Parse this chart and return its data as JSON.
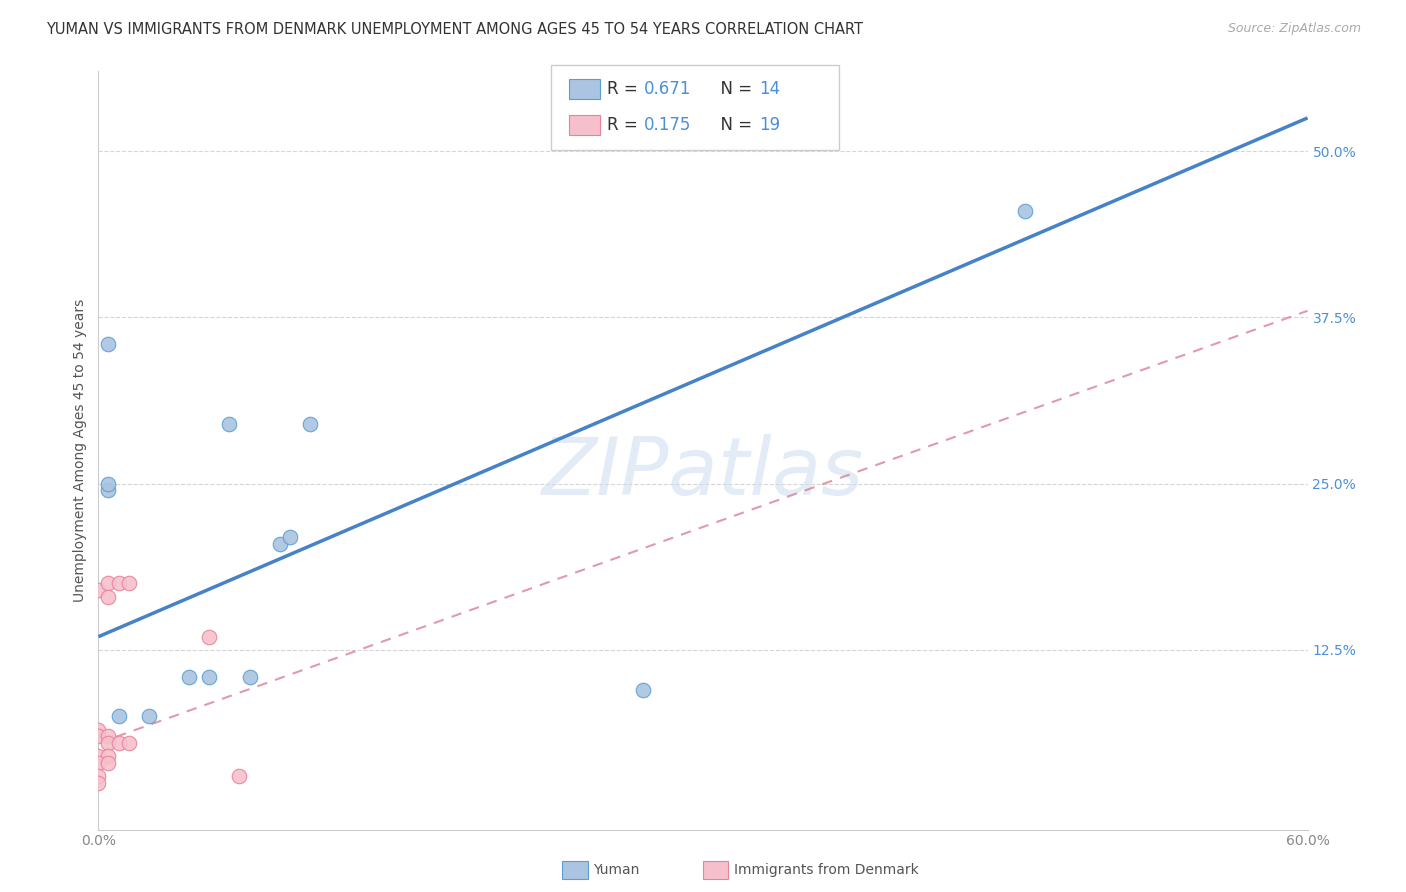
{
  "title": "YUMAN VS IMMIGRANTS FROM DENMARK UNEMPLOYMENT AMONG AGES 45 TO 54 YEARS CORRELATION CHART",
  "source": "Source: ZipAtlas.com",
  "ylabel": "Unemployment Among Ages 45 to 54 years",
  "xlim": [
    0.0,
    0.6
  ],
  "ylim": [
    -0.01,
    0.56
  ],
  "xtick_values": [
    0.0,
    0.1,
    0.2,
    0.3,
    0.4,
    0.5,
    0.6
  ],
  "xtick_labels": [
    "0.0%",
    "",
    "",
    "",
    "",
    "",
    "60.0%"
  ],
  "ytick_values": [
    0.125,
    0.25,
    0.375,
    0.5
  ],
  "ytick_labels": [
    "12.5%",
    "25.0%",
    "37.5%",
    "50.0%"
  ],
  "yuman_points": [
    [
      0.005,
      0.355
    ],
    [
      0.065,
      0.295
    ],
    [
      0.105,
      0.295
    ],
    [
      0.09,
      0.205
    ],
    [
      0.095,
      0.21
    ],
    [
      0.045,
      0.105
    ],
    [
      0.055,
      0.105
    ],
    [
      0.075,
      0.105
    ],
    [
      0.01,
      0.075
    ],
    [
      0.025,
      0.075
    ],
    [
      0.27,
      0.095
    ],
    [
      0.46,
      0.455
    ],
    [
      0.005,
      0.245
    ],
    [
      0.005,
      0.25
    ]
  ],
  "denmark_points": [
    [
      0.0,
      0.17
    ],
    [
      0.005,
      0.175
    ],
    [
      0.01,
      0.175
    ],
    [
      0.015,
      0.175
    ],
    [
      0.005,
      0.165
    ],
    [
      0.0,
      0.065
    ],
    [
      0.0,
      0.06
    ],
    [
      0.005,
      0.06
    ],
    [
      0.005,
      0.055
    ],
    [
      0.01,
      0.055
    ],
    [
      0.015,
      0.055
    ],
    [
      0.0,
      0.045
    ],
    [
      0.005,
      0.045
    ],
    [
      0.0,
      0.04
    ],
    [
      0.005,
      0.04
    ],
    [
      0.0,
      0.03
    ],
    [
      0.0,
      0.025
    ],
    [
      0.055,
      0.135
    ],
    [
      0.07,
      0.03
    ]
  ],
  "yuman_color": "#aac4e2",
  "yuman_edge_color": "#5a9fd4",
  "denmark_color": "#f5c0cc",
  "denmark_edge_color": "#e8829a",
  "yuman_line_color": "#4682c8",
  "denmark_line_color": "#d87890",
  "legend_r_yuman": "0.671",
  "legend_n_yuman": "14",
  "legend_r_denmark": "0.175",
  "legend_n_denmark": "19",
  "watermark": "ZIPatlas",
  "marker_size": 110,
  "yuman_trend_x": [
    0.0,
    0.6
  ],
  "yuman_trend_y": [
    0.135,
    0.525
  ],
  "denmark_trend_x": [
    0.0,
    0.6
  ],
  "denmark_trend_y": [
    0.055,
    0.38
  ],
  "title_fontsize": 10.5,
  "source_fontsize": 9,
  "axis_label_fontsize": 10,
  "tick_fontsize": 10,
  "legend_fontsize": 12,
  "r_color": "#4a90d9",
  "n_color": "#4a90d9"
}
